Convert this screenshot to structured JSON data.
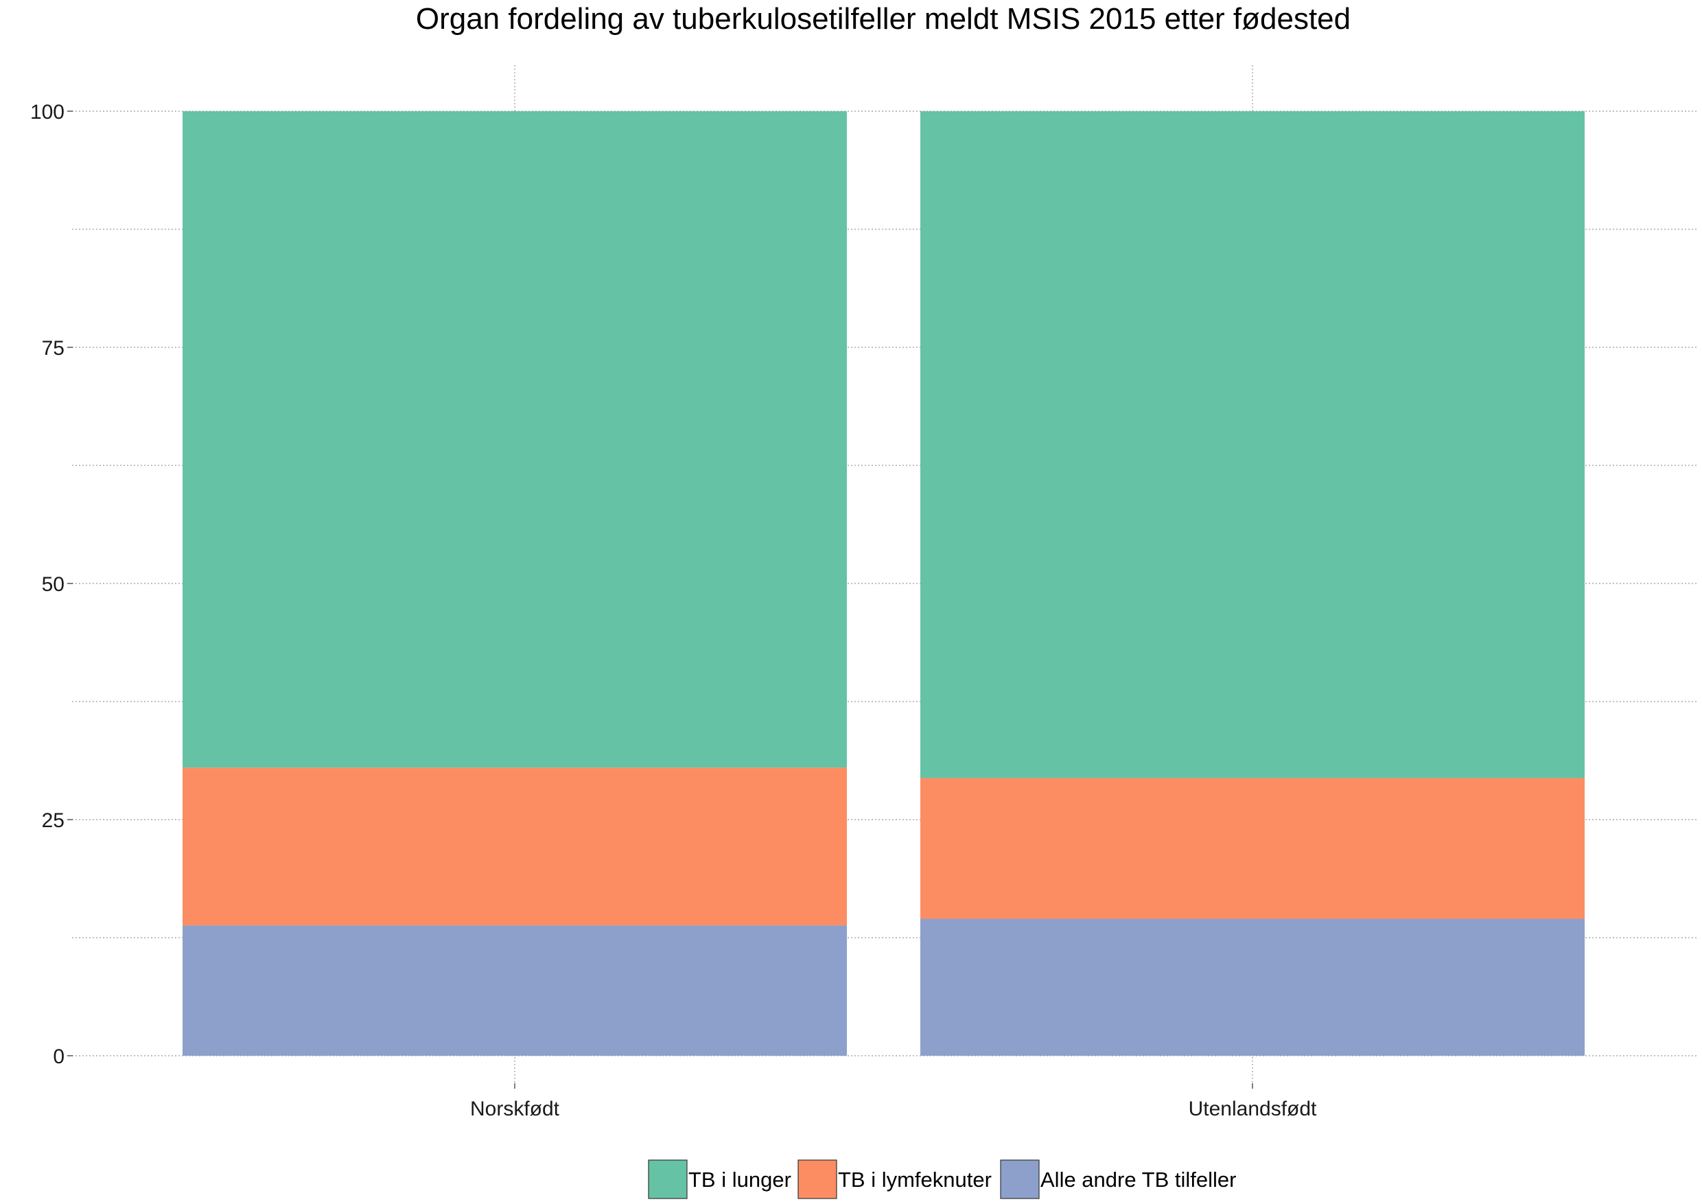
{
  "chart_data": {
    "type": "bar",
    "stacked": true,
    "title": "Organ fordeling av tuberkulosetilfeller meldt MSIS 2015 etter fødested",
    "xlabel": "",
    "ylabel": "",
    "categories": [
      "Norskfødt",
      "Utenlandsfødt"
    ],
    "series": [
      {
        "name": "Alle andre TB tilfeller",
        "color": "#8DA0CB",
        "values": [
          13.8,
          14.5
        ]
      },
      {
        "name": "TB i lymfeknuter",
        "color": "#FC8D62",
        "values": [
          16.7,
          14.9
        ]
      },
      {
        "name": "TB i lunger",
        "color": "#66C2A5",
        "values": [
          69.5,
          70.6
        ]
      }
    ],
    "ylim": [
      0,
      100
    ],
    "yticks": [
      "0",
      "25",
      "50",
      "75",
      "100"
    ],
    "ytick_values": [
      0,
      25,
      50,
      75,
      100
    ],
    "minor_gridlines": [
      12.5,
      37.5,
      62.5,
      87.5
    ],
    "grid": true,
    "legend": {
      "placement": "bottom",
      "order": [
        "TB i lunger",
        "TB i lymfeknuter",
        "Alle andre TB tilfeller"
      ]
    }
  }
}
